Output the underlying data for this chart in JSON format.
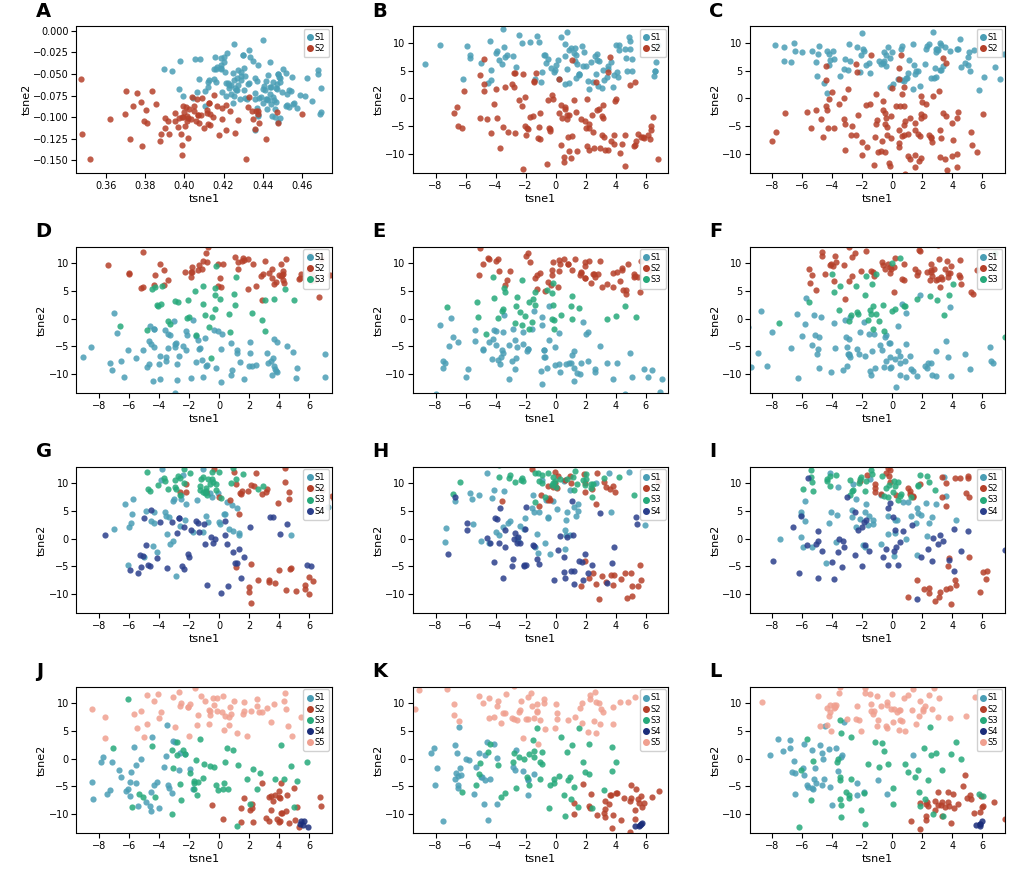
{
  "colors_2": [
    "#4a9eb5",
    "#b5402a"
  ],
  "colors_3": [
    "#4a9eb5",
    "#b5402a",
    "#26a97a"
  ],
  "colors_4": [
    "#4a9eb5",
    "#b5402a",
    "#26a97a",
    "#2b3f8c"
  ],
  "colors_5": [
    "#4a9eb5",
    "#b5402a",
    "#26a97a",
    "#1a2d7a",
    "#f0a090"
  ],
  "panel_labels": [
    "A",
    "B",
    "C",
    "D",
    "E",
    "F",
    "G",
    "H",
    "I",
    "J",
    "K",
    "L"
  ],
  "xlabel": "tsne1",
  "ylabel": "tsne2",
  "legend_labels_2": [
    "S1",
    "S2"
  ],
  "legend_labels_3": [
    "S1",
    "S2",
    "S3"
  ],
  "legend_labels_4": [
    "S1",
    "S2",
    "S3",
    "S4"
  ],
  "legend_labels_5": [
    "S1",
    "S2",
    "S3",
    "S4",
    "S5"
  ],
  "dot_size": 20,
  "alpha": 0.85,
  "seed": 42
}
